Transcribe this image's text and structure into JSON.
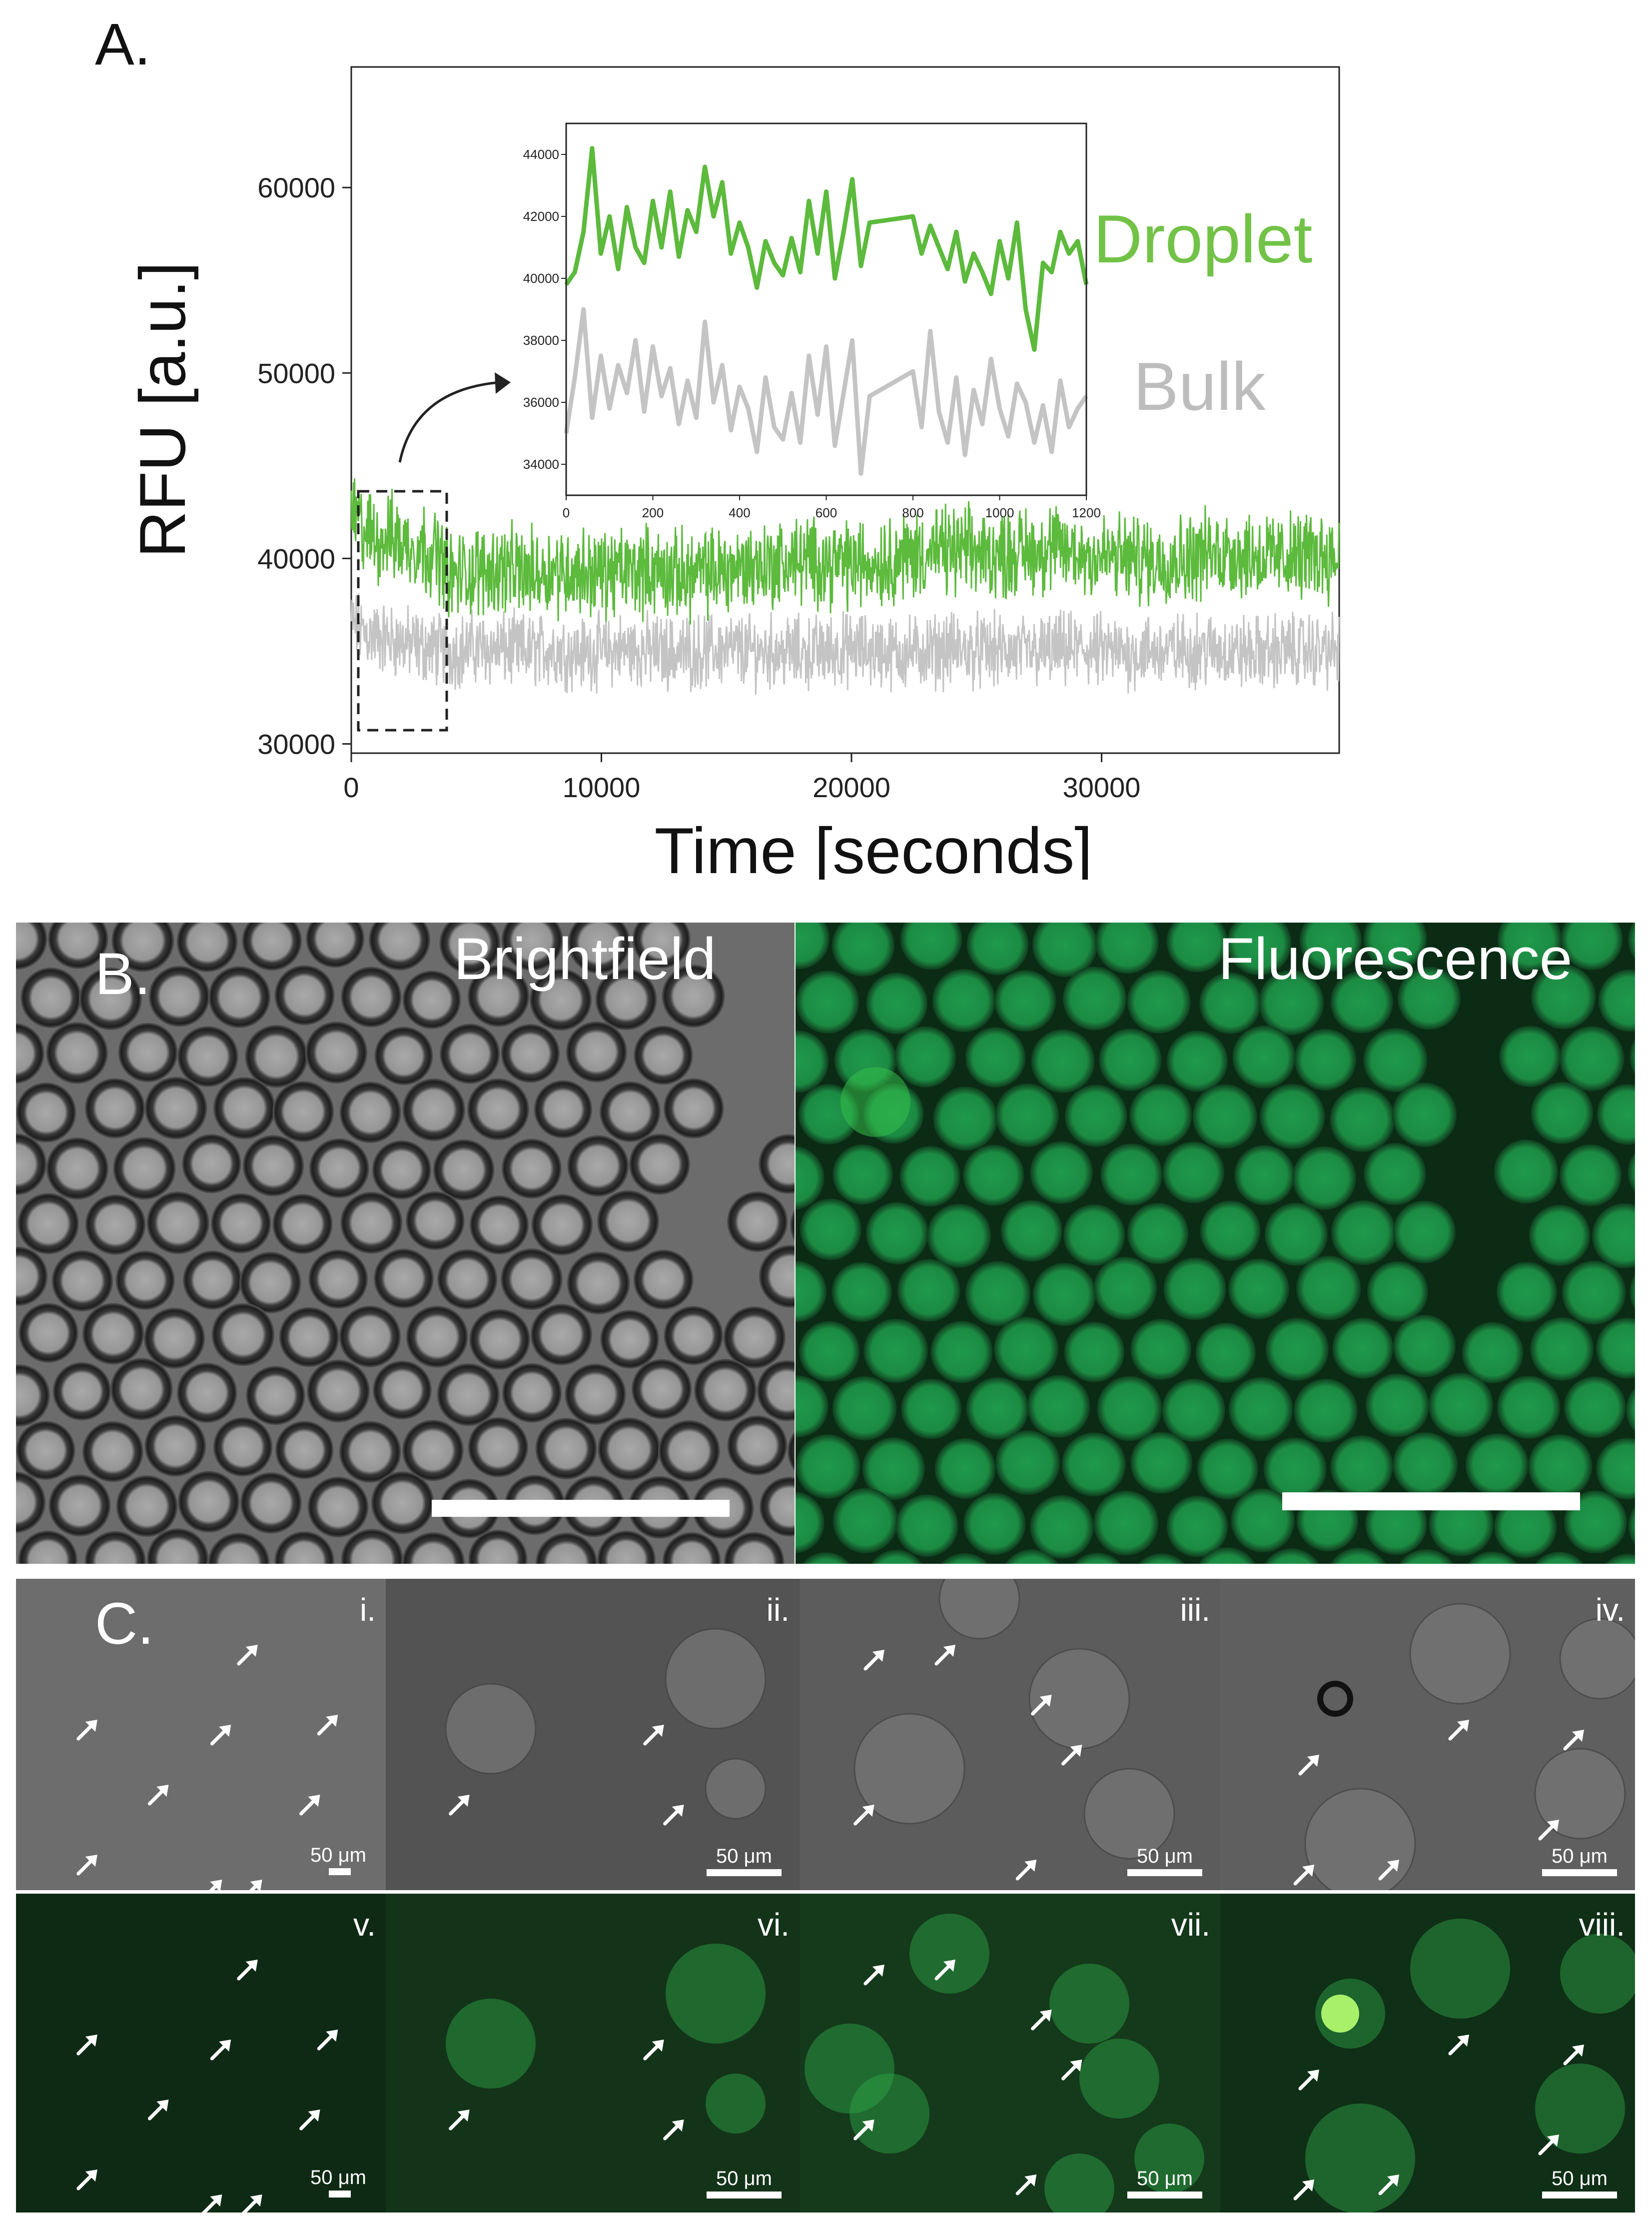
{
  "panels": {
    "a": "A.",
    "b": "B.",
    "c": "C."
  },
  "chart_data": {
    "type": "line",
    "xlabel": "Time [seconds]",
    "ylabel": "RFU [a.u.]",
    "xlim": [
      0,
      39500
    ],
    "ylim": [
      29500,
      66500
    ],
    "xticks": [
      0,
      10000,
      20000,
      30000
    ],
    "yticks": [
      30000,
      40000,
      50000,
      60000
    ],
    "grid": false,
    "series": [
      {
        "name": "Droplet",
        "color": "#5cba3c",
        "x": [
          0,
          500,
          1000,
          1500,
          2000,
          2500,
          3000,
          3500,
          4000,
          5000,
          6000,
          7000,
          8000,
          9000,
          10000,
          11000,
          12000,
          13000,
          14000,
          15000,
          16000,
          17000,
          18000,
          19000,
          20000,
          21000,
          22000,
          23000,
          24000,
          25000,
          26000,
          27000,
          28000,
          29000,
          30000,
          31000,
          32000,
          33000,
          34000,
          35000,
          36000,
          37000,
          38000,
          39000,
          39500
        ],
        "y": [
          42500,
          41500,
          41000,
          41200,
          40800,
          40700,
          40500,
          40200,
          39000,
          39300,
          39500,
          39200,
          39400,
          39300,
          39200,
          39300,
          39400,
          39100,
          39200,
          39400,
          39600,
          39700,
          39900,
          39800,
          39700,
          39800,
          40100,
          40300,
          40400,
          40300,
          40200,
          40400,
          40500,
          40300,
          40100,
          40000,
          39900,
          40000,
          40200,
          40300,
          40200,
          40000,
          40100,
          40200,
          40000
        ]
      },
      {
        "name": "Bulk",
        "color": "#c4c4c4",
        "x": [
          0,
          500,
          1000,
          1500,
          2000,
          2500,
          3000,
          3500,
          4000,
          5000,
          6000,
          7000,
          8000,
          9000,
          10000,
          11000,
          12000,
          13000,
          14000,
          15000,
          16000,
          17000,
          18000,
          19000,
          20000,
          21000,
          22000,
          23000,
          24000,
          25000,
          26000,
          27000,
          28000,
          29000,
          30000,
          31000,
          32000,
          33000,
          34000,
          35000,
          36000,
          37000,
          38000,
          39000,
          39500
        ],
        "y": [
          36500,
          36000,
          35800,
          35600,
          35500,
          35300,
          35200,
          35100,
          35000,
          35200,
          35100,
          35000,
          35100,
          34900,
          35000,
          35100,
          35000,
          34900,
          35000,
          35100,
          35000,
          35000,
          34900,
          35000,
          35100,
          35000,
          34900,
          35000,
          35100,
          35000,
          35000,
          34900,
          35000,
          35100,
          35000,
          34900,
          35000,
          35000,
          35100,
          35000,
          34900,
          35000,
          35100,
          35000,
          35000
        ]
      }
    ],
    "inset": {
      "xlim": [
        0,
        1200
      ],
      "ylim": [
        33000,
        45000
      ],
      "xticks": [
        0,
        200,
        400,
        600,
        800,
        1000,
        1200
      ],
      "yticks": [
        34000,
        36000,
        38000,
        40000,
        42000,
        44000
      ],
      "droplet_x": [
        0,
        20,
        40,
        60,
        80,
        100,
        120,
        140,
        160,
        180,
        200,
        220,
        240,
        260,
        280,
        300,
        320,
        340,
        360,
        380,
        400,
        420,
        440,
        460,
        480,
        500,
        520,
        540,
        560,
        580,
        600,
        620,
        640,
        660,
        680,
        700,
        800,
        820,
        840,
        860,
        880,
        900,
        920,
        940,
        960,
        980,
        1000,
        1020,
        1040,
        1060,
        1080,
        1100,
        1120,
        1140,
        1160,
        1180,
        1200
      ],
      "droplet_y": [
        39800,
        40200,
        41500,
        44200,
        40800,
        42000,
        40300,
        42300,
        41000,
        40500,
        42500,
        41000,
        42800,
        40700,
        42200,
        41500,
        43600,
        42000,
        43100,
        40800,
        41800,
        41000,
        39700,
        41200,
        40500,
        40100,
        41300,
        40200,
        42500,
        40800,
        42800,
        40000,
        41500,
        43200,
        40400,
        41800,
        42000,
        40800,
        41700,
        41000,
        40300,
        41500,
        39900,
        40800,
        40200,
        39500,
        41200,
        40000,
        41800,
        39000,
        37700,
        40500,
        40200,
        41500,
        40800,
        41200,
        39800
      ],
      "bulk_x": [
        0,
        20,
        40,
        60,
        80,
        100,
        120,
        140,
        160,
        180,
        200,
        220,
        240,
        260,
        280,
        300,
        320,
        340,
        360,
        380,
        400,
        420,
        440,
        460,
        480,
        500,
        520,
        540,
        560,
        580,
        600,
        620,
        640,
        660,
        680,
        700,
        800,
        820,
        840,
        860,
        880,
        900,
        920,
        940,
        960,
        980,
        1000,
        1020,
        1040,
        1060,
        1080,
        1100,
        1120,
        1140,
        1160,
        1180,
        1200
      ],
      "bulk_y": [
        35000,
        36800,
        39000,
        35500,
        37500,
        35800,
        37200,
        36300,
        38000,
        35700,
        37800,
        36200,
        37100,
        35300,
        36700,
        35500,
        38600,
        36000,
        37200,
        35100,
        36500,
        35800,
        34400,
        36800,
        35200,
        34800,
        36300,
        34700,
        37500,
        35600,
        37800,
        34600,
        36300,
        38000,
        33700,
        36200,
        37000,
        35200,
        38300,
        35700,
        34700,
        36800,
        34300,
        36400,
        35300,
        37400,
        35800,
        34900,
        36600,
        36000,
        34700,
        35900,
        34400,
        36700,
        35200,
        35800,
        36200
      ]
    }
  },
  "legend": {
    "droplet": "Droplet",
    "bulk": "Bulk"
  },
  "panelB": {
    "brightfield": "Brightfield",
    "fluorescence": "Fluorescence"
  },
  "panelC": {
    "labels": [
      "i.",
      "ii.",
      "iii.",
      "iv.",
      "v.",
      "vi.",
      "vii.",
      "viii."
    ],
    "scalebar": "50 μm"
  }
}
